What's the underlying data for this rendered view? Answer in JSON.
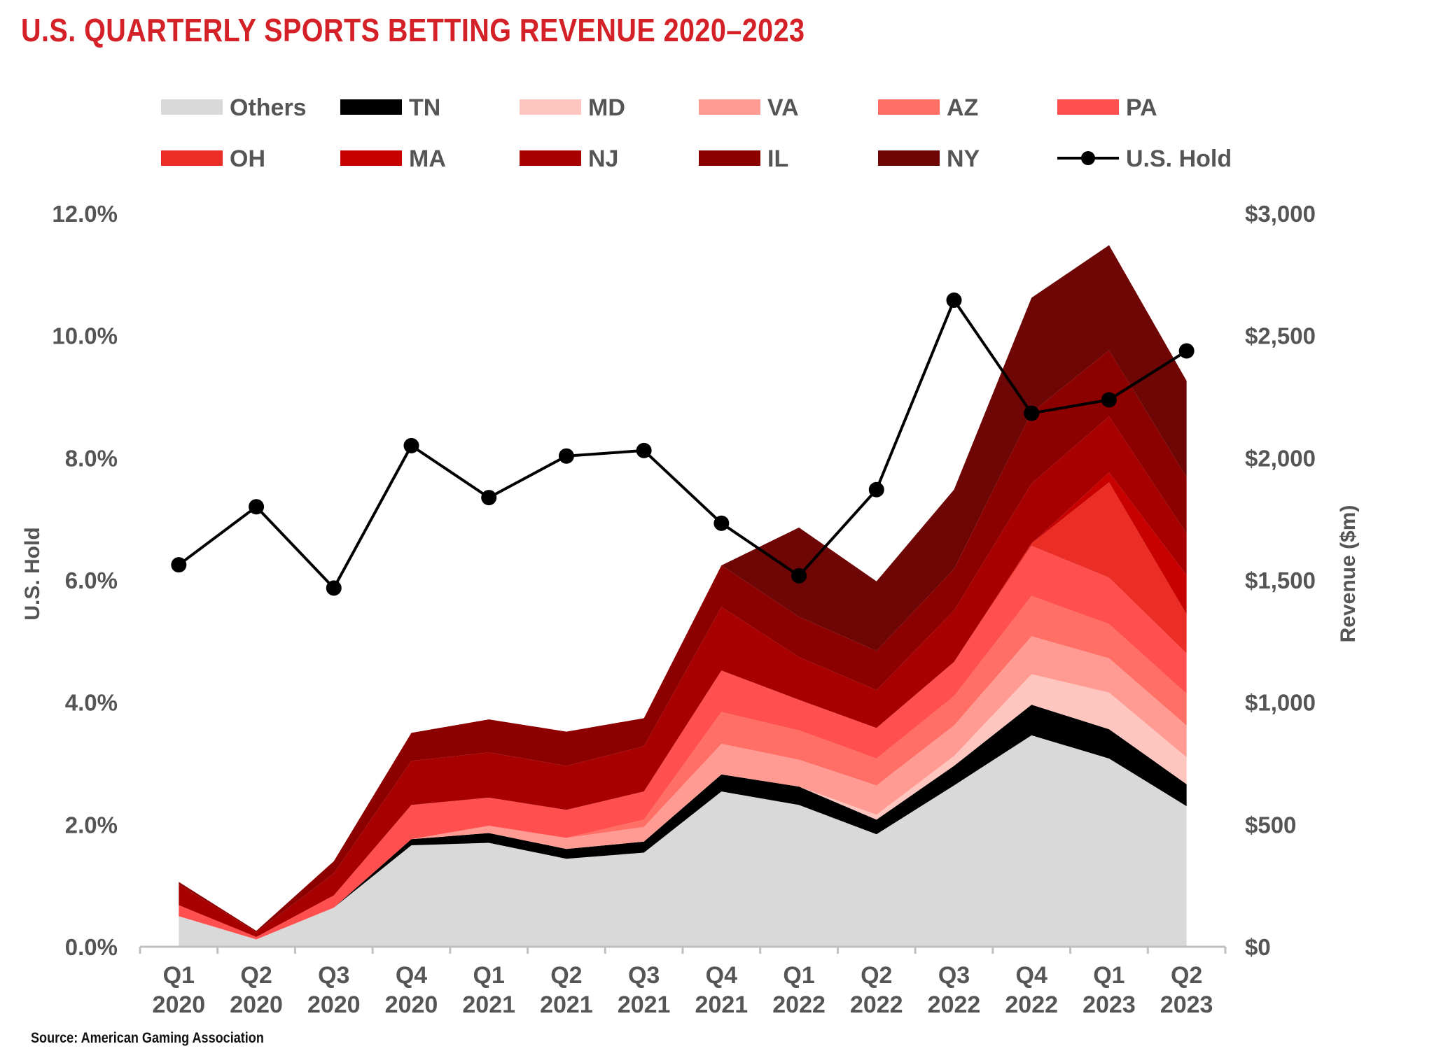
{
  "chart_data": {
    "type": "area",
    "title": "U.S. QUARTERLY SPORTS BETTING REVENUE 2020–2023",
    "source": "Source: American Gaming Association",
    "categories": [
      [
        "Q1",
        "2020"
      ],
      [
        "Q2",
        "2020"
      ],
      [
        "Q3",
        "2020"
      ],
      [
        "Q4",
        "2020"
      ],
      [
        "Q1",
        "2021"
      ],
      [
        "Q2",
        "2021"
      ],
      [
        "Q3",
        "2021"
      ],
      [
        "Q4",
        "2021"
      ],
      [
        "Q1",
        "2022"
      ],
      [
        "Q2",
        "2022"
      ],
      [
        "Q3",
        "2022"
      ],
      [
        "Q4",
        "2022"
      ],
      [
        "Q1",
        "2023"
      ],
      [
        "Q2",
        "2023"
      ]
    ],
    "y_left": {
      "label": "U.S. Hold",
      "range": [
        0,
        12
      ],
      "ticks": [
        "0.0%",
        "2.0%",
        "4.0%",
        "6.0%",
        "8.0%",
        "10.0%",
        "12.0%"
      ]
    },
    "y_right": {
      "label": "Revenue ($m)",
      "range": [
        0,
        3000
      ],
      "ticks": [
        "$0",
        "$500",
        "$1,000",
        "$1,500",
        "$2,000",
        "$2,500",
        "$3,000"
      ]
    },
    "grid": false,
    "legend_position": "top",
    "stacked_series": [
      {
        "name": "Others",
        "color": "#d9d9d9",
        "values": [
          125,
          30,
          160,
          415,
          425,
          360,
          385,
          635,
          580,
          460,
          660,
          865,
          770,
          575
        ]
      },
      {
        "name": "TN",
        "color": "#000000",
        "values": [
          0,
          0,
          0,
          25,
          40,
          40,
          45,
          70,
          75,
          60,
          80,
          125,
          120,
          90
        ]
      },
      {
        "name": "MD",
        "color": "#ffc6c0",
        "values": [
          0,
          0,
          0,
          0,
          0,
          0,
          0,
          0,
          0,
          20,
          40,
          125,
          150,
          110
        ]
      },
      {
        "name": "VA",
        "color": "#ff9b92",
        "values": [
          0,
          0,
          0,
          0,
          30,
          45,
          60,
          125,
          110,
          120,
          125,
          155,
          140,
          130
        ]
      },
      {
        "name": "AZ",
        "color": "#ff6f66",
        "values": [
          0,
          0,
          0,
          0,
          0,
          0,
          30,
          130,
          120,
          110,
          120,
          165,
          140,
          130
        ]
      },
      {
        "name": "PA",
        "color": "#ff4f4f",
        "values": [
          45,
          10,
          50,
          140,
          115,
          115,
          115,
          170,
          125,
          125,
          140,
          205,
          190,
          165
        ]
      },
      {
        "name": "OH",
        "color": "#ea2d25",
        "values": [
          0,
          0,
          0,
          0,
          0,
          0,
          0,
          0,
          0,
          0,
          0,
          10,
          390,
          160
        ]
      },
      {
        "name": "MA",
        "color": "#c80000",
        "values": [
          0,
          0,
          0,
          0,
          0,
          0,
          0,
          0,
          0,
          0,
          0,
          0,
          40,
          160
        ]
      },
      {
        "name": "NJ",
        "color": "#a80000",
        "values": [
          85,
          20,
          90,
          180,
          185,
          180,
          185,
          260,
          175,
          155,
          210,
          245,
          230,
          170
        ]
      },
      {
        "name": "IL",
        "color": "#8c0000",
        "values": [
          10,
          5,
          50,
          115,
          135,
          140,
          115,
          170,
          165,
          160,
          170,
          290,
          270,
          230
        ]
      },
      {
        "name": "NY",
        "color": "#6e0606",
        "values": [
          0,
          0,
          0,
          0,
          0,
          0,
          0,
          0,
          365,
          285,
          325,
          470,
          430,
          395
        ]
      }
    ],
    "line_series": {
      "name": "U.S. Hold",
      "color": "#000000",
      "axis": "left",
      "values": [
        6.25,
        7.2,
        5.87,
        8.2,
        7.35,
        8.03,
        8.12,
        6.93,
        6.07,
        7.48,
        10.58,
        8.73,
        8.95,
        9.75
      ]
    }
  }
}
